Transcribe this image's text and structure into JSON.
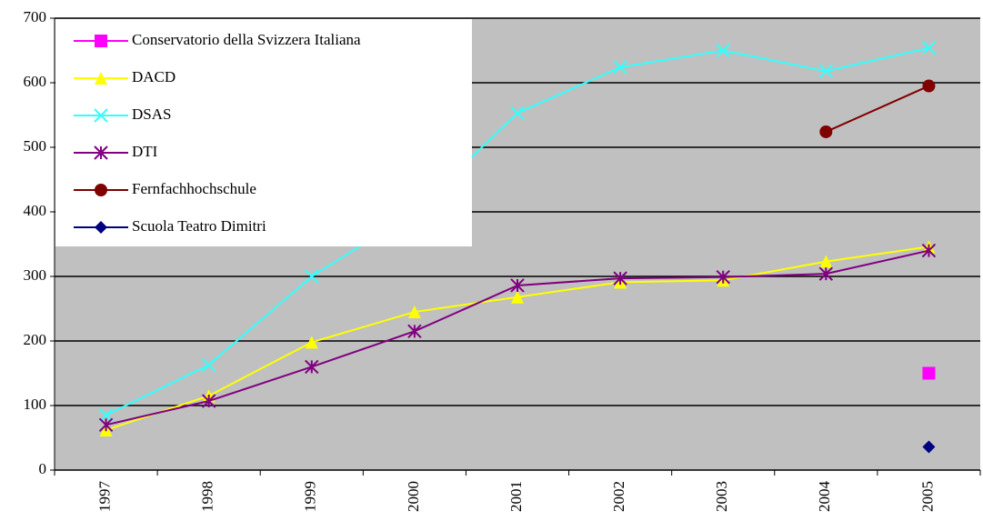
{
  "chart_data": {
    "type": "line",
    "categories": [
      "1997",
      "1998",
      "1999",
      "2000",
      "2001",
      "2002",
      "2003",
      "2004",
      "2005"
    ],
    "series": [
      {
        "name": "Conservatorio della Svizzera Italiana",
        "color": "#ff00ff",
        "marker": "square",
        "values": [
          null,
          null,
          null,
          null,
          null,
          null,
          null,
          null,
          150
        ]
      },
      {
        "name": "DACD",
        "color": "#ffff00",
        "marker": "triangle",
        "values": [
          62,
          115,
          198,
          245,
          268,
          291,
          294,
          323,
          346
        ]
      },
      {
        "name": "DSAS",
        "color": "#33ffff",
        "marker": "x",
        "values": [
          85,
          163,
          300,
          400,
          553,
          624,
          650,
          618,
          654
        ]
      },
      {
        "name": "DTI",
        "color": "#800080",
        "marker": "star",
        "values": [
          70,
          107,
          160,
          215,
          286,
          297,
          299,
          304,
          340
        ]
      },
      {
        "name": "Fernfachhochschule",
        "color": "#800000",
        "marker": "circle",
        "values": [
          null,
          null,
          null,
          null,
          null,
          null,
          null,
          524,
          595
        ]
      },
      {
        "name": "Scuola Teatro Dimitri",
        "color": "#000080",
        "marker": "diamond",
        "values": [
          null,
          null,
          null,
          null,
          null,
          null,
          null,
          null,
          36
        ]
      }
    ],
    "ylim": [
      0,
      700
    ],
    "yticks": [
      0,
      100,
      200,
      300,
      400,
      500,
      600,
      700
    ],
    "grid": true,
    "legend": "top-left"
  }
}
